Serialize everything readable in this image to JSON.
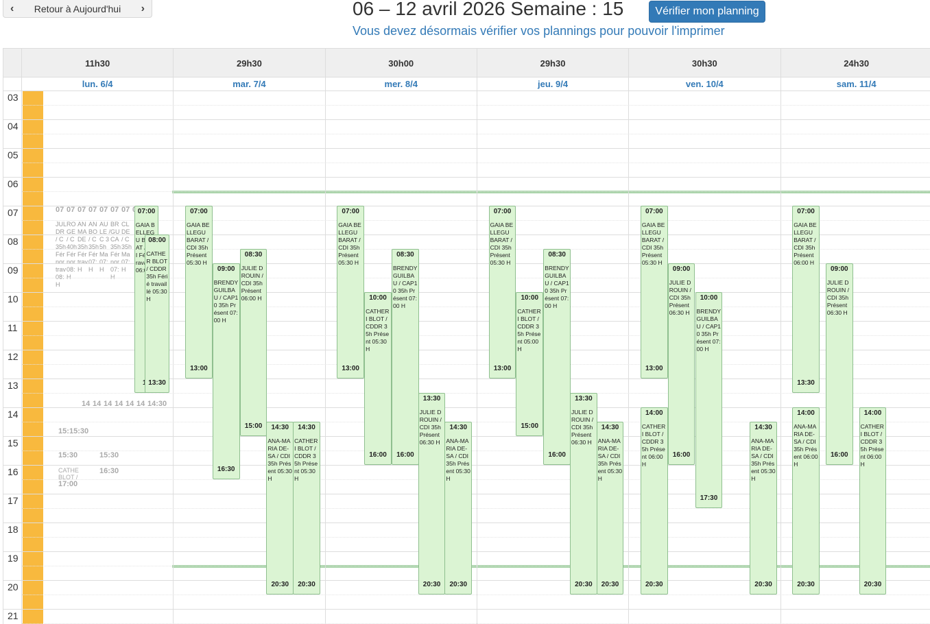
{
  "nav": {
    "today_label": "Retour à Aujourd'hui"
  },
  "header": {
    "title": "06 – 12 avril 2026 Semaine : 15",
    "verify_label": "Vérifier mon planning",
    "notice": "Vous devez désormais vérifier vos plannings pour pouvoir l'imprimer"
  },
  "days": [
    {
      "total": "11h30",
      "label": "lun. 6/4"
    },
    {
      "total": "29h30",
      "label": "mar. 7/4"
    },
    {
      "total": "30h00",
      "label": "mer. 8/4"
    },
    {
      "total": "29h30",
      "label": "jeu. 9/4"
    },
    {
      "total": "30h30",
      "label": "ven. 10/4"
    },
    {
      "total": "24h30",
      "label": "sam. 11/4"
    }
  ],
  "hours": [
    "03",
    "04",
    "05",
    "06",
    "07",
    "08",
    "09",
    "10",
    "11",
    "12",
    "13",
    "14",
    "15",
    "16",
    "17",
    "18",
    "19",
    "20",
    "21"
  ],
  "monday_overlay": {
    "starts": [
      "07",
      "07",
      "07",
      "07",
      "07",
      "07",
      "07",
      "07"
    ],
    "names": [
      "JUL DR / C 35h Fér nor trav 08: H",
      "RO GE / C 40h Fér nor 08: H",
      "AN MA DE 35h Fér trav H",
      "AN BO / C 35h Fér 07: H",
      "AU LE / C 35h Ma 07: H",
      "BR GU CA 35h Fér nor 07: H",
      "CL DE / C 35h Ma 07: H"
    ],
    "ends_14": [
      "14",
      "14",
      "14",
      "14",
      "14",
      "14",
      "14:30"
    ],
    "ends_15": [
      "15:",
      "15:30"
    ],
    "extra_15": [
      "15:30",
      "15:30"
    ],
    "extra_16": [
      "16:30"
    ],
    "cathe_name": "CATHE BLOT /",
    "cathe_end": "17:00"
  },
  "events": [
    {
      "day": 0,
      "start": "07:00",
      "end": "13",
      "name": "GAIA BELLEGU BARAT / CDI Férié travaillé 06:00 H"
    },
    {
      "day": 0,
      "start": "08:00",
      "end": "13:30",
      "name": "CATHER BLOT / CDDR 35h Férié travaillé 05:30 H"
    },
    {
      "day": 1,
      "start": "07:00",
      "end": "13:00",
      "name": "GAIA BELLEGU BARAT / CDI 35h Présent 05:30 H"
    },
    {
      "day": 1,
      "start": "09:00",
      "end": "16:30",
      "name": "BRENDY GUILBAU / CAP10 35h Présent 07:00 H"
    },
    {
      "day": 1,
      "start": "08:30",
      "end": "15:00",
      "name": "JULIE DROUIN / CDI 35h Présent 06:00 H"
    },
    {
      "day": 1,
      "start": "14:30",
      "end": "20:30",
      "name": "ANA-MARIA DE-SA / CDI 35h Présent 05:30 H"
    },
    {
      "day": 1,
      "start": "14:30",
      "end": "20:30",
      "name": "CATHERI BLOT / CDDR 35h Présent 05:30 H"
    },
    {
      "day": 2,
      "start": "07:00",
      "end": "13:00",
      "name": "GAIA BELLEGU BARAT / CDI 35h Présent 05:30 H"
    },
    {
      "day": 2,
      "start": "10:00",
      "end": "16:00",
      "name": "CATHERI BLOT / CDDR 35h Présent 05:30 H"
    },
    {
      "day": 2,
      "start": "08:30",
      "end": "16:00",
      "name": "BRENDY GUILBAU / CAP10 35h Présent 07:00 H"
    },
    {
      "day": 2,
      "start": "13:30",
      "end": "20:30",
      "name": "JULIE DROUIN / CDI 35h Présent 06:30 H"
    },
    {
      "day": 2,
      "start": "14:30",
      "end": "20:30",
      "name": "ANA-MARIA DE-SA / CDI 35h Présent 05:30 H"
    },
    {
      "day": 3,
      "start": "07:00",
      "end": "13:00",
      "name": "GAIA BELLEGU BARAT / CDI 35h Présent 05:30 H"
    },
    {
      "day": 3,
      "start": "10:00",
      "end": "15:00",
      "name": "CATHERI BLOT / CDDR 35h Présent 05:00 H"
    },
    {
      "day": 3,
      "start": "08:30",
      "end": "16:00",
      "name": "BRENDY GUILBAU / CAP10 35h Présent 07:00 H"
    },
    {
      "day": 3,
      "start": "13:30",
      "end": "20:30",
      "name": "JULIE DROUIN / CDI 35h Présent 06:30 H"
    },
    {
      "day": 3,
      "start": "14:30",
      "end": "20:30",
      "name": "ANA-MARIA DE-SA / CDI 35h Présent 05:30 H"
    },
    {
      "day": 4,
      "start": "07:00",
      "end": "13:00",
      "name": "GAIA BELLEGU BARAT / CDI 35h Présent 05:30 H"
    },
    {
      "day": 4,
      "start": "14:00",
      "end": "20:30",
      "name": "CATHERI BLOT / CDDR 35h Présent 06:00 H"
    },
    {
      "day": 4,
      "start": "09:00",
      "end": "16:00",
      "name": "JULIE DROUIN / CDI 35h Présent 06:30 H"
    },
    {
      "day": 4,
      "start": "10:00",
      "end": "17:30",
      "name": "BRENDY GUILBAU / CAP10 35h Présent 07:00 H"
    },
    {
      "day": 4,
      "start": "14:30",
      "end": "20:30",
      "name": "ANA-MARIA DE-SA / CDI 35h Présent 05:30 H"
    },
    {
      "day": 5,
      "start": "07:00",
      "end": "13:30",
      "name": "GAIA BELLEGU BARAT / CDI 35h Présent 06:00 H"
    },
    {
      "day": 5,
      "start": "14:00",
      "end": "20:30",
      "name": "ANA-MARIA DE-SA / CDI 35h Présent 06:00 H"
    },
    {
      "day": 5,
      "start": "09:00",
      "end": "16:00",
      "name": "JULIE DROUIN / CDI 35h Présent 06:30 H"
    },
    {
      "day": 5,
      "start": "14:00",
      "end": "20:30",
      "name": "CATHERI BLOT / CDDR 35h Présent 06:00 H"
    }
  ]
}
